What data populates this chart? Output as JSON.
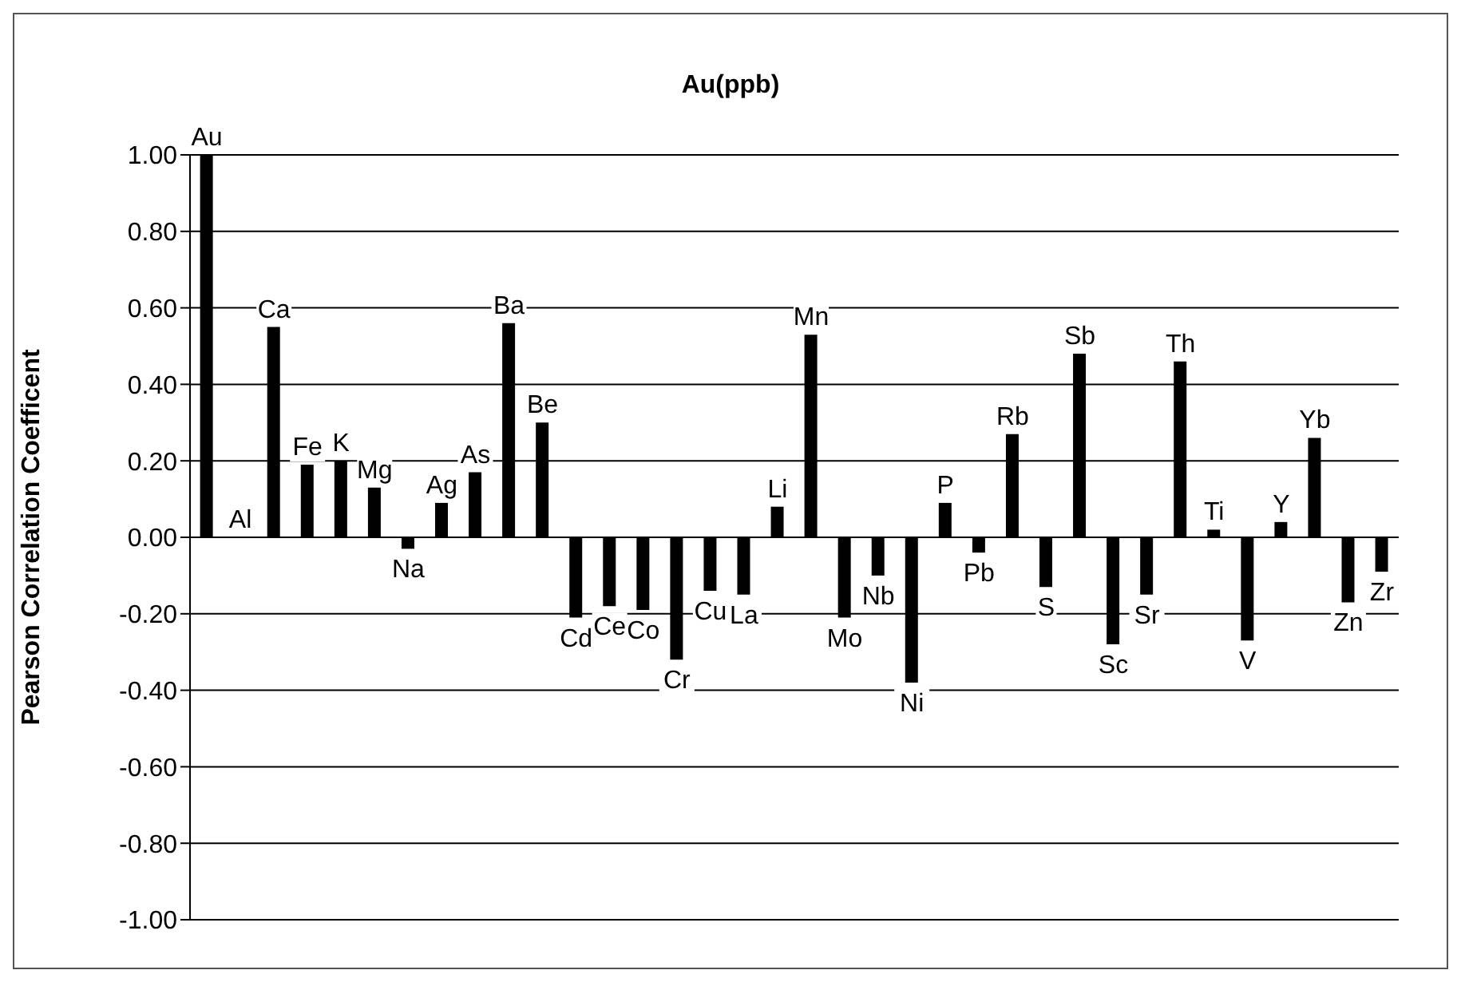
{
  "chart_data": {
    "type": "bar",
    "title": "Au(ppb)",
    "ylabel": "Pearson Correlation Coefficent",
    "categories": [
      "Au",
      "Al",
      "Ca",
      "Fe",
      "K",
      "Mg",
      "Na",
      "Ag",
      "As",
      "Ba",
      "Be",
      "Cd",
      "Ce",
      "Co",
      "Cr",
      "Cu",
      "La",
      "Li",
      "Mn",
      "Mo",
      "Nb",
      "Ni",
      "P",
      "Pb",
      "Rb",
      "S",
      "Sb",
      "Sc",
      "Sr",
      "Th",
      "Ti",
      "V",
      "Y",
      "Yb",
      "Zn",
      "Zr"
    ],
    "values": [
      1.0,
      0.0,
      0.55,
      0.19,
      0.2,
      0.13,
      -0.03,
      0.09,
      0.17,
      0.56,
      0.3,
      -0.21,
      -0.18,
      -0.19,
      -0.32,
      -0.14,
      -0.15,
      0.08,
      0.53,
      -0.21,
      -0.1,
      -0.38,
      0.09,
      -0.04,
      0.27,
      -0.13,
      0.48,
      -0.28,
      -0.15,
      0.46,
      0.02,
      -0.27,
      0.04,
      0.26,
      -0.17,
      -0.09
    ],
    "color": "#000000",
    "ylim": [
      -1,
      1
    ],
    "yticks": [
      {
        "value": -1,
        "label": "-1.00"
      },
      {
        "value": -0.8,
        "label": "-0.80"
      },
      {
        "value": -0.6,
        "label": "-0.60"
      },
      {
        "value": -0.4,
        "label": "-0.40"
      },
      {
        "value": -0.2,
        "label": "-0.20"
      },
      {
        "value": 0,
        "label": "0.00"
      },
      {
        "value": 0.2,
        "label": "0.20"
      },
      {
        "value": 0.4,
        "label": "0.40"
      },
      {
        "value": 0.6,
        "label": "0.60"
      },
      {
        "value": 0.8,
        "label": "0.80"
      },
      {
        "value": 1,
        "label": "1.00"
      }
    ],
    "grid": "y",
    "tick_labels": "y",
    "legend": false
  }
}
